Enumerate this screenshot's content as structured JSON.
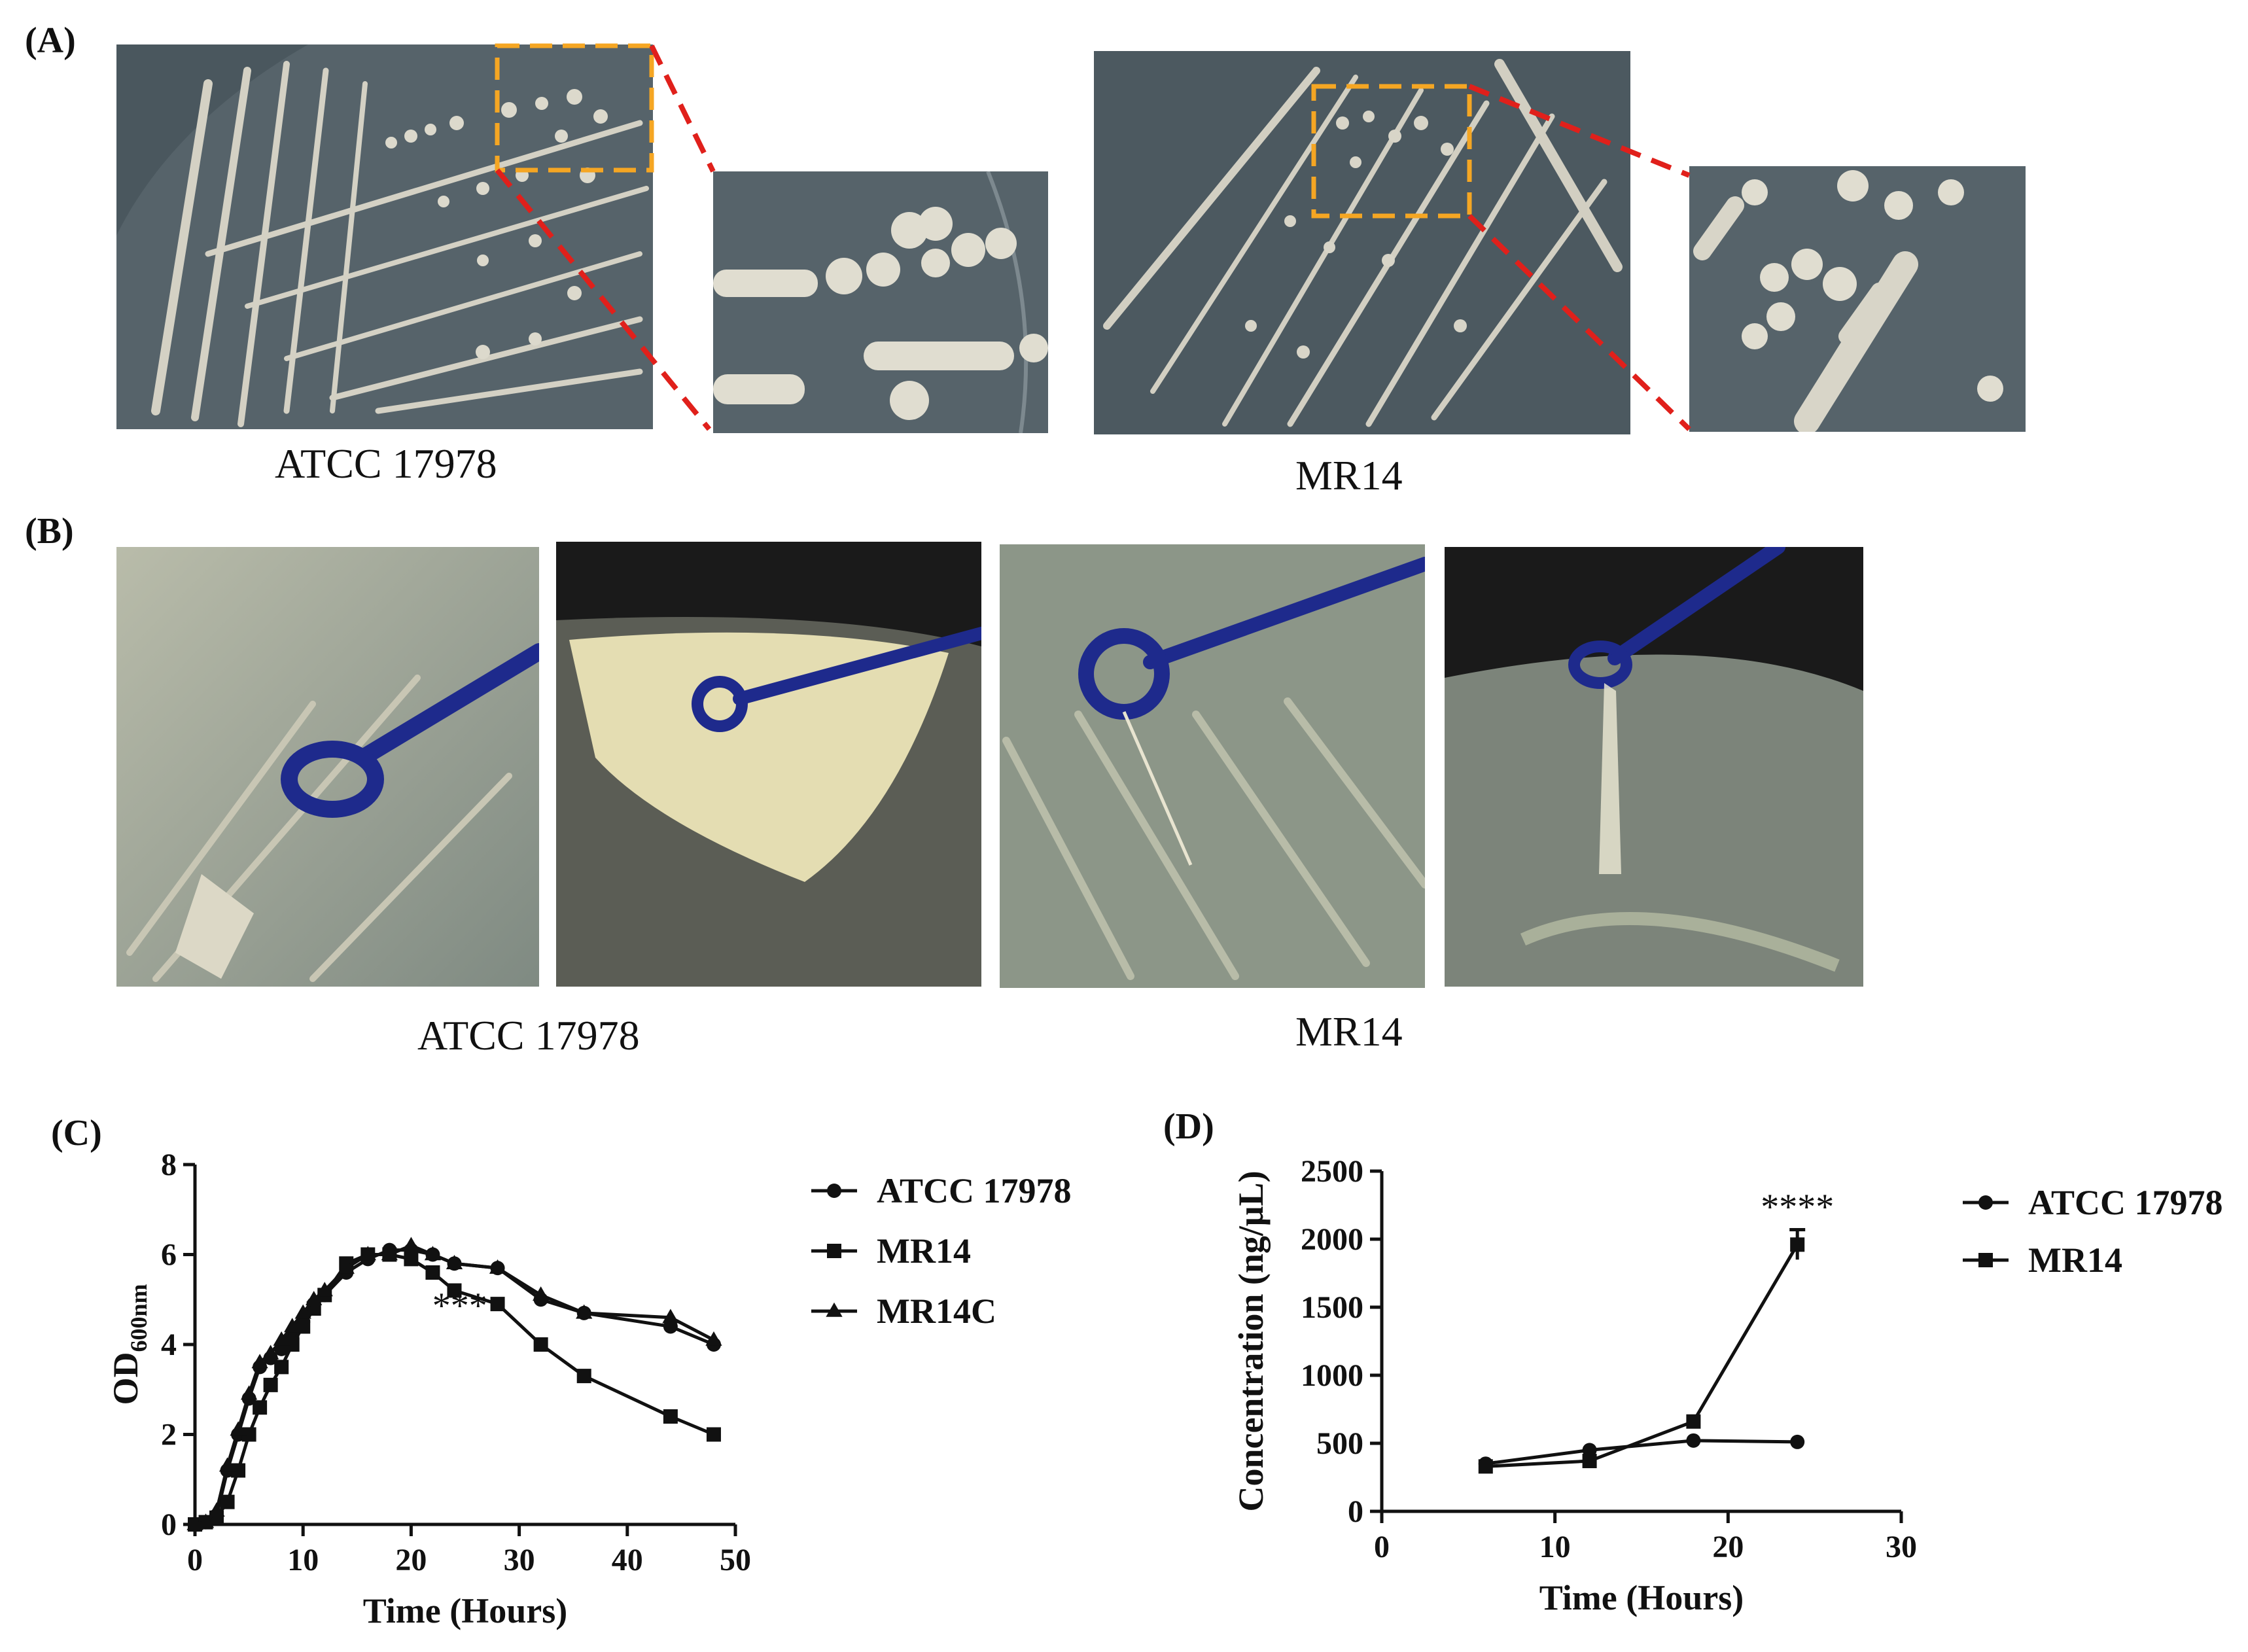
{
  "panels": {
    "a": {
      "label": "(A)",
      "captions": [
        "ATCC 17978",
        "MR14"
      ],
      "colors": {
        "zoom_box": "#f5a623",
        "zoom_lines": "#e0201b",
        "agar": "#4f5c63",
        "colony": "#d8d5c8"
      }
    },
    "b": {
      "label": "(B)",
      "captions": [
        "ATCC 17978",
        "MR14"
      ],
      "colors": {
        "loop": "#1e2a8c",
        "agar": "#8c9688",
        "string": "#e8e4d0"
      }
    },
    "c": {
      "label": "(C)"
    },
    "d": {
      "label": "(D)"
    }
  },
  "chart_data": [
    {
      "id": "C",
      "type": "line",
      "xlabel": "Time (Hours)",
      "ylabel_main": "OD",
      "ylabel_sub": "600nm",
      "xlim": [
        0,
        50
      ],
      "ylim": [
        0,
        8
      ],
      "xticks": [
        0,
        10,
        20,
        30,
        40,
        50
      ],
      "yticks": [
        0,
        2,
        4,
        6,
        8
      ],
      "annotation": {
        "text": "***",
        "x": 24.5,
        "y": 4.6
      },
      "legend_position": "right",
      "series": [
        {
          "name": "ATCC 17978",
          "marker": "circle",
          "x": [
            0,
            1,
            2,
            3,
            4,
            5,
            6,
            7,
            8,
            9,
            10,
            11,
            12,
            14,
            16,
            18,
            20,
            22,
            24,
            28,
            32,
            36,
            44,
            48
          ],
          "y": [
            0,
            0.05,
            0.2,
            1.2,
            2.0,
            2.8,
            3.5,
            3.7,
            3.9,
            4.2,
            4.5,
            4.9,
            5.1,
            5.6,
            5.9,
            6.1,
            6.1,
            6.0,
            5.8,
            5.7,
            5.0,
            4.7,
            4.4,
            4.0
          ]
        },
        {
          "name": "MR14",
          "marker": "square",
          "x": [
            0,
            1,
            2,
            3,
            4,
            5,
            6,
            7,
            8,
            9,
            10,
            11,
            12,
            14,
            16,
            18,
            20,
            22,
            24,
            28,
            32,
            36,
            44,
            48
          ],
          "y": [
            0,
            0.05,
            0.15,
            0.5,
            1.2,
            2.0,
            2.6,
            3.1,
            3.5,
            4.0,
            4.4,
            4.8,
            5.1,
            5.8,
            6.0,
            6.0,
            5.9,
            5.6,
            5.2,
            4.9,
            4.0,
            3.3,
            2.4,
            2.0
          ]
        },
        {
          "name": "MR14C",
          "marker": "triangle",
          "x": [
            0,
            1,
            2,
            3,
            4,
            5,
            6,
            7,
            8,
            9,
            10,
            11,
            12,
            14,
            16,
            18,
            20,
            22,
            24,
            28,
            32,
            36,
            44,
            48
          ],
          "y": [
            0,
            0.05,
            0.3,
            1.3,
            2.1,
            2.9,
            3.6,
            3.8,
            4.1,
            4.4,
            4.7,
            5.0,
            5.2,
            5.7,
            6.0,
            6.0,
            6.2,
            6.0,
            5.8,
            5.7,
            5.1,
            4.7,
            4.6,
            4.1
          ]
        }
      ]
    },
    {
      "id": "D",
      "type": "line",
      "xlabel": "Time (Hours)",
      "ylabel": "Concentration (ng/μL)",
      "xlim": [
        0,
        30
      ],
      "ylim": [
        0,
        2500
      ],
      "xticks": [
        0,
        10,
        20,
        30
      ],
      "yticks": [
        0,
        500,
        1000,
        1500,
        2000,
        2500
      ],
      "annotation": {
        "text": "****",
        "x": 24,
        "y": 2150
      },
      "legend_position": "right",
      "series": [
        {
          "name": "ATCC 17978",
          "marker": "circle",
          "x": [
            6,
            12,
            18,
            24
          ],
          "y": [
            350,
            450,
            520,
            510
          ]
        },
        {
          "name": "MR14",
          "marker": "square",
          "x": [
            6,
            12,
            18,
            24
          ],
          "y": [
            330,
            370,
            660,
            1960
          ],
          "err": [
            0,
            0,
            0,
            110
          ]
        }
      ]
    }
  ]
}
